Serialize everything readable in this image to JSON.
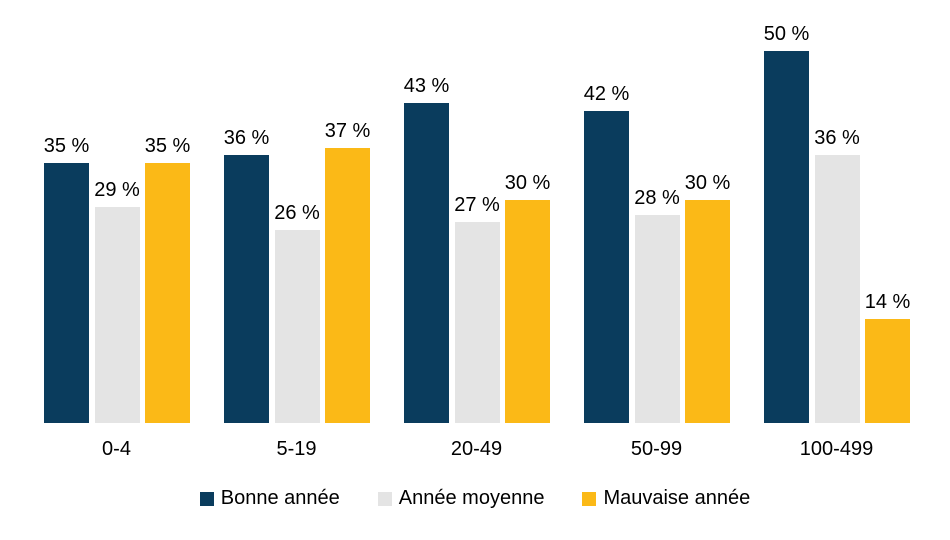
{
  "chart_data": {
    "type": "bar",
    "categories": [
      "0-4",
      "5-19",
      "20-49",
      "50-99",
      "100-499"
    ],
    "series": [
      {
        "name": "Bonne année",
        "color": "#0A3C5D",
        "values": [
          35,
          36,
          43,
          42,
          50
        ]
      },
      {
        "name": "Année moyenne",
        "color": "#E4E4E4",
        "values": [
          29,
          26,
          27,
          28,
          36
        ]
      },
      {
        "name": "Mauvaise année",
        "color": "#FBB917",
        "values": [
          35,
          37,
          30,
          30,
          14
        ]
      }
    ],
    "value_suffix": " %",
    "value_labels": [
      [
        "35 %",
        "36 %",
        "43 %",
        "42 %",
        "50 %"
      ],
      [
        "29 %",
        "26 %",
        "27 %",
        "28 %",
        "36 %"
      ],
      [
        "35 %",
        "37 %",
        "30 %",
        "30 %",
        "14 %"
      ]
    ],
    "title": "",
    "xlabel": "",
    "ylabel": "",
    "ylim": [
      0,
      55
    ],
    "grid": false,
    "axis_line": false,
    "legend_position": "bottom-center",
    "background_color": "#FFFFFF",
    "label_color": "#000000"
  }
}
